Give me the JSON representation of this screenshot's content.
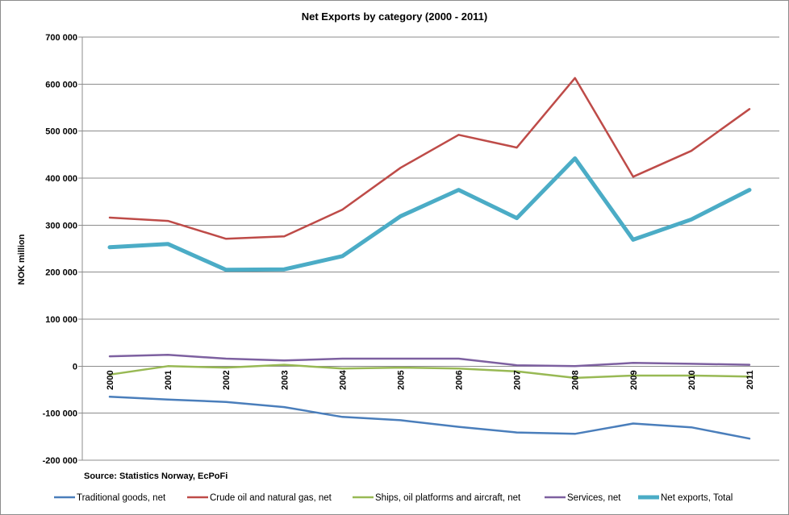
{
  "chart_data": {
    "type": "line",
    "title": "Net Exports by category (2000 - 2011)",
    "xlabel": "",
    "ylabel": "NOK million",
    "source": "Source: Statistics  Norway, EcPoFi",
    "categories": [
      "2000",
      "2001",
      "2002",
      "2003",
      "2004",
      "2005",
      "2006",
      "2007",
      "2008",
      "2009",
      "2010",
      "2011"
    ],
    "ylim": [
      -200000,
      700000
    ],
    "yticks": [
      700000,
      600000,
      500000,
      400000,
      300000,
      200000,
      100000,
      0,
      -100000,
      -200000
    ],
    "ytick_labels": [
      "700 000",
      "600 000",
      "500 000",
      "400 000",
      "300 000",
      "200 000",
      "100 000",
      "0",
      "-100 000",
      "-200 000"
    ],
    "grid": "horizontal",
    "legend_position": "bottom",
    "series": [
      {
        "name": "Traditional goods, net",
        "color": "#4a7ebb",
        "values": [
          -65000,
          -71000,
          -76000,
          -87000,
          -108000,
          -115000,
          -129000,
          -141000,
          -144000,
          -122000,
          -130000,
          -154000
        ]
      },
      {
        "name": "Crude oil and natural gas, net",
        "color": "#be4b48",
        "values": [
          316000,
          309000,
          271000,
          276000,
          333000,
          422000,
          492000,
          465000,
          613000,
          403000,
          458000,
          547000
        ]
      },
      {
        "name": "Ships, oil platforms and aircraft, net",
        "color": "#98b954",
        "values": [
          -18000,
          0,
          -3000,
          3000,
          -5000,
          -3000,
          -5000,
          -11000,
          -25000,
          -20000,
          -20000,
          -22000
        ]
      },
      {
        "name": "Services, net",
        "color": "#7d60a0",
        "values": [
          21000,
          24000,
          16000,
          12000,
          16000,
          16000,
          16000,
          2000,
          0,
          7000,
          5000,
          3000
        ]
      },
      {
        "name": "Net exports, Total",
        "color": "#4bacc6",
        "values": [
          253000,
          260000,
          205000,
          206000,
          234000,
          319000,
          375000,
          315000,
          442000,
          269000,
          312000,
          375000
        ]
      }
    ]
  }
}
